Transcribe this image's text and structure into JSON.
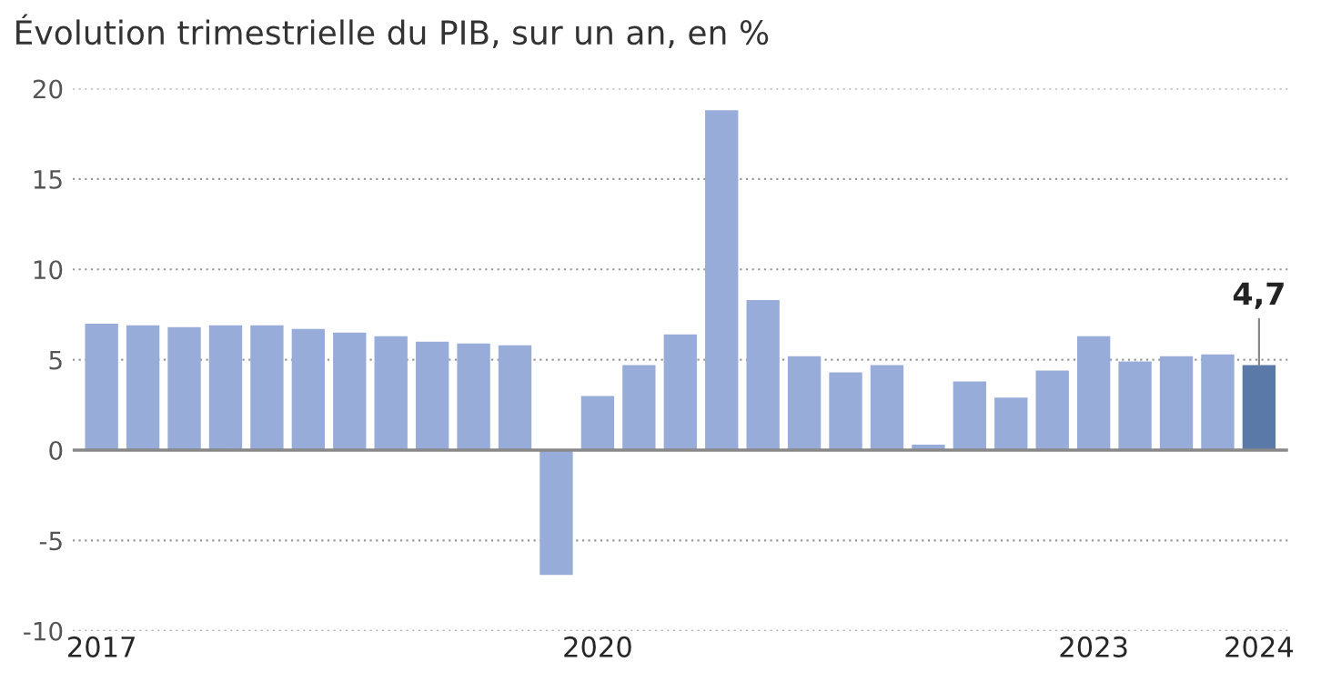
{
  "chart_data": {
    "type": "bar",
    "title": "Évolution trimestrielle du PIB, sur un an, en %",
    "categories": [
      "2017",
      null,
      null,
      null,
      null,
      null,
      null,
      null,
      null,
      null,
      null,
      null,
      "2020",
      null,
      null,
      null,
      null,
      null,
      null,
      null,
      null,
      null,
      null,
      null,
      "2023",
      null,
      null,
      null,
      "2024"
    ],
    "values": [
      7.0,
      6.9,
      6.8,
      6.9,
      6.9,
      6.7,
      6.5,
      6.3,
      6.0,
      5.9,
      5.8,
      -6.9,
      3.0,
      4.7,
      6.4,
      18.8,
      8.3,
      5.2,
      4.3,
      4.7,
      0.3,
      3.8,
      2.9,
      4.4,
      6.3,
      4.9,
      5.2,
      5.3,
      4.7
    ],
    "colors": [
      "#97acd8",
      "#97acd8",
      "#97acd8",
      "#97acd8",
      "#97acd8",
      "#97acd8",
      "#97acd8",
      "#97acd8",
      "#97acd8",
      "#97acd8",
      "#97acd8",
      "#97acd8",
      "#97acd8",
      "#97acd8",
      "#97acd8",
      "#97acd8",
      "#97acd8",
      "#97acd8",
      "#97acd8",
      "#97acd8",
      "#97acd8",
      "#97acd8",
      "#97acd8",
      "#97acd8",
      "#97acd8",
      "#97acd8",
      "#97acd8",
      "#97acd8",
      "#5a78a8"
    ],
    "value_labels": [
      null,
      null,
      null,
      null,
      null,
      null,
      null,
      null,
      null,
      null,
      null,
      null,
      null,
      null,
      null,
      null,
      null,
      null,
      null,
      null,
      null,
      null,
      null,
      null,
      null,
      null,
      null,
      null,
      "4,7"
    ],
    "ylim": [
      -10,
      20
    ],
    "yticks": [
      20,
      15,
      10,
      5,
      0,
      {
        "value": -5,
        "label": "-5"
      },
      {
        "value": -10,
        "label": "-10"
      }
    ],
    "grid": "y",
    "ref_lines": [
      {
        "axis": "y",
        "value": 0,
        "color": "#888888",
        "line_style": "solid"
      }
    ]
  }
}
